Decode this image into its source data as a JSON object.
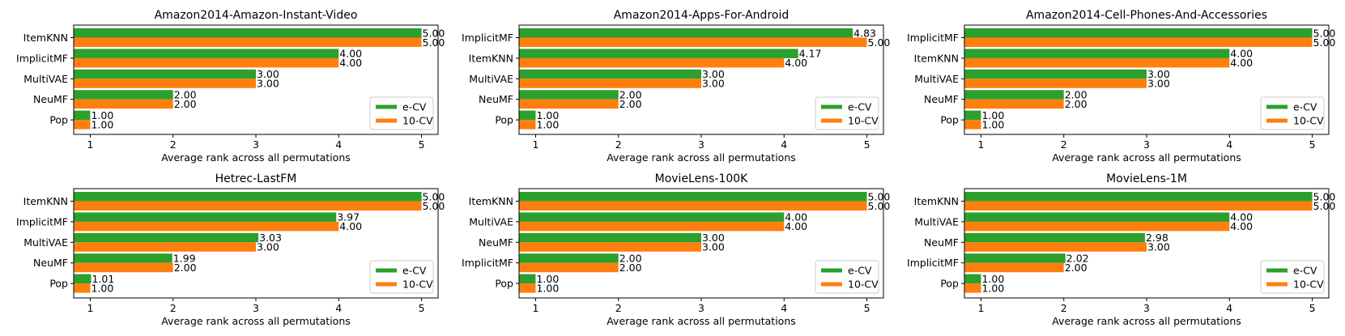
{
  "chart_data": [
    {
      "type": "bar",
      "orientation": "horizontal",
      "title": "Amazon2014-Amazon-Instant-Video",
      "xlabel": "Average rank across all permutations",
      "ylabel": "",
      "xlim": [
        0.8,
        5.2
      ],
      "xticks": [
        1,
        2,
        3,
        4,
        5
      ],
      "categories": [
        "ItemKNN",
        "ImplicitMF",
        "MultiVAE",
        "NeuMF",
        "Pop"
      ],
      "series": [
        {
          "name": "e-CV",
          "values": [
            5.0,
            4.0,
            3.0,
            2.0,
            1.0
          ],
          "labels": [
            "5.00",
            "4.00",
            "3.00",
            "2.00",
            "1.00"
          ]
        },
        {
          "name": "10-CV",
          "values": [
            5.0,
            4.0,
            3.0,
            2.0,
            1.0
          ],
          "labels": [
            "5.00",
            "4.00",
            "3.00",
            "2.00",
            "1.00"
          ]
        }
      ],
      "legend": "lower-right"
    },
    {
      "type": "bar",
      "orientation": "horizontal",
      "title": "Amazon2014-Apps-For-Android",
      "xlabel": "Average rank across all permutations",
      "ylabel": "",
      "xlim": [
        0.8,
        5.2
      ],
      "xticks": [
        1,
        2,
        3,
        4,
        5
      ],
      "categories": [
        "ImplicitMF",
        "ItemKNN",
        "MultiVAE",
        "NeuMF",
        "Pop"
      ],
      "series": [
        {
          "name": "e-CV",
          "values": [
            4.83,
            4.17,
            3.0,
            2.0,
            1.0
          ],
          "labels": [
            "4.83",
            "4.17",
            "3.00",
            "2.00",
            "1.00"
          ]
        },
        {
          "name": "10-CV",
          "values": [
            5.0,
            4.0,
            3.0,
            2.0,
            1.0
          ],
          "labels": [
            "5.00",
            "4.00",
            "3.00",
            "2.00",
            "1.00"
          ]
        }
      ],
      "legend": "lower-right"
    },
    {
      "type": "bar",
      "orientation": "horizontal",
      "title": "Amazon2014-Cell-Phones-And-Accessories",
      "xlabel": "Average rank across all permutations",
      "ylabel": "",
      "xlim": [
        0.8,
        5.2
      ],
      "xticks": [
        1,
        2,
        3,
        4,
        5
      ],
      "categories": [
        "ImplicitMF",
        "ItemKNN",
        "MultiVAE",
        "NeuMF",
        "Pop"
      ],
      "series": [
        {
          "name": "e-CV",
          "values": [
            5.0,
            4.0,
            3.0,
            2.0,
            1.0
          ],
          "labels": [
            "5.00",
            "4.00",
            "3.00",
            "2.00",
            "1.00"
          ]
        },
        {
          "name": "10-CV",
          "values": [
            5.0,
            4.0,
            3.0,
            2.0,
            1.0
          ],
          "labels": [
            "5.00",
            "4.00",
            "3.00",
            "2.00",
            "1.00"
          ]
        }
      ],
      "legend": "lower-right"
    },
    {
      "type": "bar",
      "orientation": "horizontal",
      "title": "Hetrec-LastFM",
      "xlabel": "Average rank across all permutations",
      "ylabel": "",
      "xlim": [
        0.8,
        5.2
      ],
      "xticks": [
        1,
        2,
        3,
        4,
        5
      ],
      "categories": [
        "ItemKNN",
        "ImplicitMF",
        "MultiVAE",
        "NeuMF",
        "Pop"
      ],
      "series": [
        {
          "name": "e-CV",
          "values": [
            5.0,
            3.97,
            3.03,
            1.99,
            1.01
          ],
          "labels": [
            "5.00",
            "3.97",
            "3.03",
            "1.99",
            "1.01"
          ]
        },
        {
          "name": "10-CV",
          "values": [
            5.0,
            4.0,
            3.0,
            2.0,
            1.0
          ],
          "labels": [
            "5.00",
            "4.00",
            "3.00",
            "2.00",
            "1.00"
          ]
        }
      ],
      "legend": "lower-right"
    },
    {
      "type": "bar",
      "orientation": "horizontal",
      "title": "MovieLens-100K",
      "xlabel": "Average rank across all permutations",
      "ylabel": "",
      "xlim": [
        0.8,
        5.2
      ],
      "xticks": [
        1,
        2,
        3,
        4,
        5
      ],
      "categories": [
        "ItemKNN",
        "MultiVAE",
        "NeuMF",
        "ImplicitMF",
        "Pop"
      ],
      "series": [
        {
          "name": "e-CV",
          "values": [
            5.0,
            4.0,
            3.0,
            2.0,
            1.0
          ],
          "labels": [
            "5.00",
            "4.00",
            "3.00",
            "2.00",
            "1.00"
          ]
        },
        {
          "name": "10-CV",
          "values": [
            5.0,
            4.0,
            3.0,
            2.0,
            1.0
          ],
          "labels": [
            "5.00",
            "4.00",
            "3.00",
            "2.00",
            "1.00"
          ]
        }
      ],
      "legend": "lower-right"
    },
    {
      "type": "bar",
      "orientation": "horizontal",
      "title": "MovieLens-1M",
      "xlabel": "Average rank across all permutations",
      "ylabel": "",
      "xlim": [
        0.8,
        5.2
      ],
      "xticks": [
        1,
        2,
        3,
        4,
        5
      ],
      "categories": [
        "ItemKNN",
        "MultiVAE",
        "NeuMF",
        "ImplicitMF",
        "Pop"
      ],
      "series": [
        {
          "name": "e-CV",
          "values": [
            5.0,
            4.0,
            2.98,
            2.02,
            1.0
          ],
          "labels": [
            "5.00",
            "4.00",
            "2.98",
            "2.02",
            "1.00"
          ]
        },
        {
          "name": "10-CV",
          "values": [
            5.0,
            4.0,
            3.0,
            2.0,
            1.0
          ],
          "labels": [
            "5.00",
            "4.00",
            "3.00",
            "2.00",
            "1.00"
          ]
        }
      ],
      "legend": "lower-right"
    }
  ],
  "colors": {
    "e-CV": "#2ca02c",
    "10-CV": "#ff7f0e",
    "axes": "#000000"
  }
}
